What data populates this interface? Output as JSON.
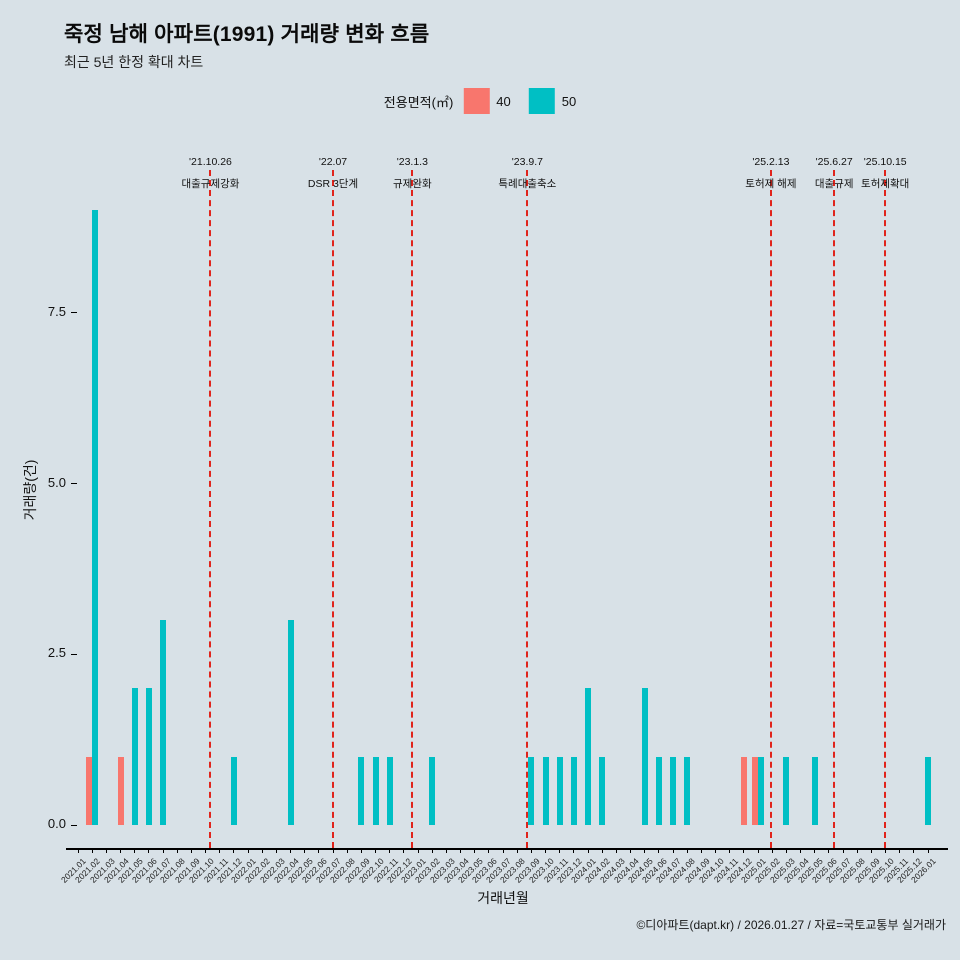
{
  "header": {
    "title": "죽정 남해 아파트(1991) 거래량 변화 흐름",
    "subtitle": "최근 5년 한정 확대 차트"
  },
  "legend": {
    "title": "전용면적(㎡)",
    "items": [
      {
        "label": "40",
        "color": "#F8766D"
      },
      {
        "label": "50",
        "color": "#00BFC4"
      }
    ]
  },
  "axes": {
    "x_title": "거래년월",
    "y_title": "거래량(건)",
    "y_tick_labels": [
      "0.0",
      "2.5",
      "5.0",
      "7.5"
    ]
  },
  "footer": {
    "caption": "©디아파트(dapt.kr) / 2026.01.27 / 자료=국토교통부 실거래가"
  },
  "chart_data": {
    "type": "bar",
    "title": "죽정 남해 아파트(1991) 거래량 변화 흐름",
    "xlabel": "거래년월",
    "ylabel": "거래량(건)",
    "ylim": [
      0,
      9.5
    ],
    "yticks": [
      0,
      2.5,
      5,
      7.5
    ],
    "grid": false,
    "legend_position": "top",
    "annotation_color": "#e0241c",
    "categories": [
      "2021.01",
      "2021.02",
      "2021.03",
      "2021.04",
      "2021.05",
      "2021.06",
      "2021.07",
      "2021.08",
      "2021.09",
      "2021.10",
      "2021.11",
      "2021.12",
      "2022.01",
      "2022.02",
      "2022.03",
      "2022.04",
      "2022.05",
      "2022.06",
      "2022.07",
      "2022.08",
      "2022.09",
      "2022.10",
      "2022.11",
      "2022.12",
      "2023.01",
      "2023.02",
      "2023.03",
      "2023.04",
      "2023.05",
      "2023.06",
      "2023.07",
      "2023.08",
      "2023.09",
      "2023.10",
      "2023.11",
      "2023.12",
      "2024.01",
      "2024.02",
      "2024.03",
      "2024.04",
      "2024.05",
      "2024.06",
      "2024.07",
      "2024.08",
      "2024.09",
      "2024.10",
      "2024.11",
      "2024.12",
      "2025.01",
      "2025.02",
      "2025.03",
      "2025.04",
      "2025.05",
      "2025.06",
      "2025.07",
      "2025.08",
      "2025.09",
      "2025.10",
      "2025.11",
      "2025.12",
      "2026.01"
    ],
    "series": [
      {
        "name": "40",
        "color": "#F8766D",
        "values": [
          0,
          1,
          0,
          1,
          0,
          0,
          0,
          0,
          0,
          0,
          0,
          0,
          0,
          0,
          0,
          0,
          0,
          0,
          0,
          0,
          0,
          0,
          0,
          0,
          0,
          0,
          0,
          0,
          0,
          0,
          0,
          0,
          0,
          0,
          0,
          0,
          0,
          0,
          0,
          0,
          0,
          0,
          0,
          0,
          0,
          0,
          0,
          1,
          1,
          0,
          0,
          0,
          0,
          0,
          0,
          0,
          0,
          0,
          0,
          0,
          0
        ]
      },
      {
        "name": "50",
        "color": "#00BFC4",
        "values": [
          0,
          9,
          0,
          0,
          2,
          2,
          3,
          0,
          0,
          0,
          0,
          1,
          0,
          0,
          0,
          3,
          0,
          0,
          0,
          0,
          1,
          1,
          1,
          0,
          0,
          1,
          0,
          0,
          0,
          0,
          0,
          0,
          1,
          1,
          1,
          1,
          2,
          1,
          0,
          0,
          2,
          1,
          1,
          1,
          0,
          0,
          0,
          0,
          1,
          0,
          1,
          0,
          1,
          0,
          0,
          0,
          0,
          0,
          0,
          0,
          1
        ]
      }
    ],
    "annotations": [
      {
        "date": "'21.10.26",
        "label": "대출규제강화",
        "month_pos": 9.35
      },
      {
        "date": "'22.07",
        "label": "DSR 3단계",
        "month_pos": 18.0
      },
      {
        "date": "'23.1.3",
        "label": "규제완화",
        "month_pos": 23.6
      },
      {
        "date": "'23.9.7",
        "label": "특례대출축소",
        "month_pos": 31.72
      },
      {
        "date": "'25.2.13",
        "label": "토허제 해제",
        "month_pos": 48.91
      },
      {
        "date": "'25.6.27",
        "label": "대출규제",
        "month_pos": 53.38
      },
      {
        "date": "'25.10.15",
        "label": "토허제확대",
        "month_pos": 56.98
      }
    ]
  }
}
